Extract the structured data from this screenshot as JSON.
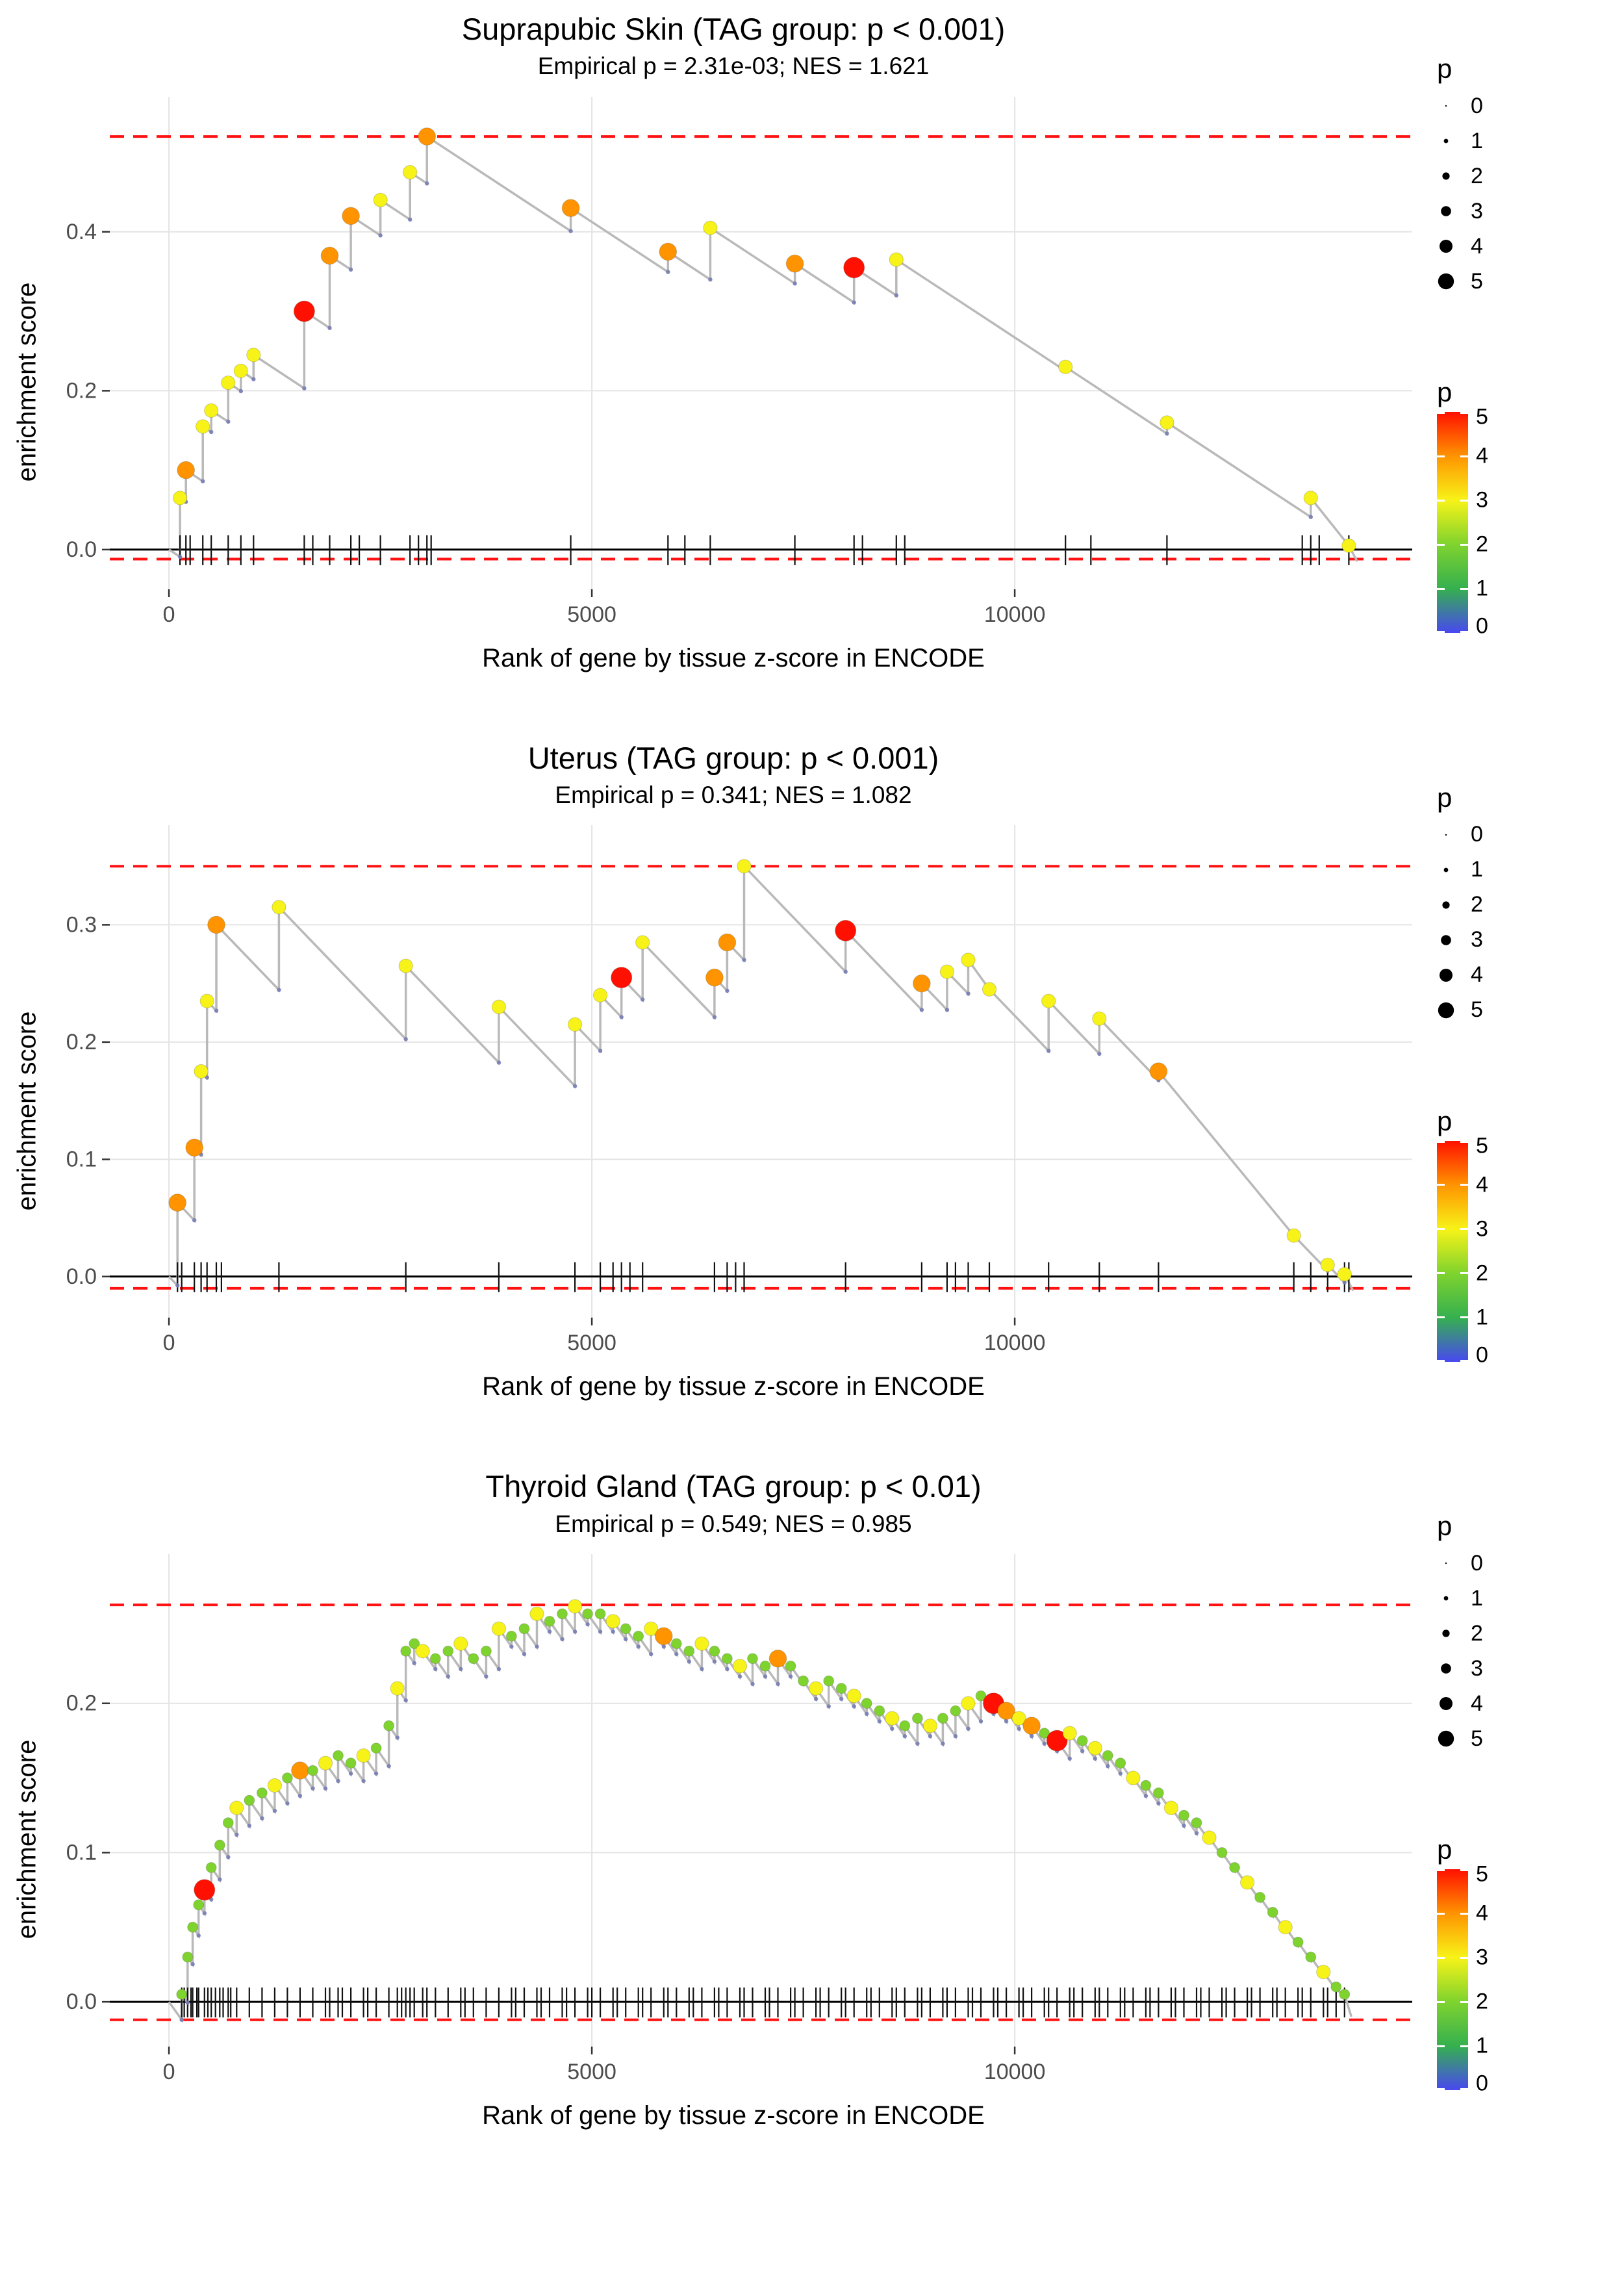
{
  "page": {
    "background": "#ffffff"
  },
  "legend": {
    "size_title": "p",
    "size_values": [
      0,
      1,
      2,
      3,
      4,
      5
    ],
    "size_labels": [
      "0",
      "1",
      "2",
      "3",
      "4",
      "5"
    ],
    "colorbar_title": "p",
    "colorbar_values": [
      5,
      4,
      3,
      2,
      1,
      0
    ],
    "colorbar_labels": [
      "5",
      "4",
      "3",
      "2",
      "1",
      "0"
    ],
    "color_stops": [
      {
        "t": 0.0,
        "c": "#4848f0"
      },
      {
        "t": 0.2,
        "c": "#35b04f"
      },
      {
        "t": 0.4,
        "c": "#7fd32e"
      },
      {
        "t": 0.6,
        "c": "#f7f318"
      },
      {
        "t": 0.8,
        "c": "#ff9400"
      },
      {
        "t": 1.0,
        "c": "#ff1000"
      }
    ]
  },
  "style": {
    "grid_color": "#e4e4e4",
    "line_color": "#b9b9b9",
    "dashed_color": "#ff1212",
    "zero_line_color": "#000000",
    "rug_color": "#111111",
    "tick_label_color": "#4d4d4d",
    "dip_dot_color": "#777db4"
  },
  "chart_data": [
    {
      "type": "line",
      "title": "Suprapubic Skin (TAG group: p < 0.001)",
      "subtitle": "Empirical p = 2.31e-03; NES = 1.621",
      "xlabel": "Rank of gene by tissue z-score in ENCODE",
      "ylabel": "enrichment score",
      "x_ticks": [
        0,
        5000,
        10000
      ],
      "y_ticks": [
        0.0,
        0.2,
        0.4
      ],
      "xlim": [
        -700,
        14700
      ],
      "ylim": [
        -0.05,
        0.57
      ],
      "hline_top": 0.52,
      "hline_bottom": -0.012,
      "zero_line": 0.0,
      "decline_slope": 7e-05,
      "x_end": 14050,
      "end_y": -0.015,
      "points_format": "[rank, enrichment_score, p]",
      "points": [
        [
          130,
          0.065,
          3
        ],
        [
          200,
          0.1,
          4
        ],
        [
          400,
          0.155,
          3
        ],
        [
          500,
          0.175,
          3
        ],
        [
          700,
          0.21,
          3
        ],
        [
          850,
          0.225,
          3
        ],
        [
          1000,
          0.245,
          3
        ],
        [
          1600,
          0.3,
          5
        ],
        [
          1900,
          0.37,
          4
        ],
        [
          2150,
          0.42,
          4
        ],
        [
          2500,
          0.44,
          3
        ],
        [
          2850,
          0.475,
          3
        ],
        [
          3050,
          0.52,
          4
        ],
        [
          4750,
          0.43,
          4
        ],
        [
          5900,
          0.375,
          4
        ],
        [
          6400,
          0.405,
          3
        ],
        [
          7400,
          0.36,
          4
        ],
        [
          8100,
          0.355,
          5
        ],
        [
          8600,
          0.365,
          3
        ],
        [
          10600,
          0.23,
          3
        ],
        [
          11800,
          0.16,
          3
        ],
        [
          13500,
          0.065,
          3
        ],
        [
          13950,
          0.005,
          3
        ]
      ],
      "rug_extra": [
        250,
        1700,
        2250,
        2950,
        3100,
        6100,
        8200,
        8700,
        10900,
        13400,
        13600
      ]
    },
    {
      "type": "line",
      "title": "Uterus (TAG group: p < 0.001)",
      "subtitle": "Empirical p = 0.341; NES = 1.082",
      "xlabel": "Rank of gene by tissue z-score in ENCODE",
      "ylabel": "enrichment score",
      "x_ticks": [
        0,
        5000,
        10000
      ],
      "y_ticks": [
        0.0,
        0.1,
        0.2,
        0.3
      ],
      "xlim": [
        -700,
        14700
      ],
      "ylim": [
        -0.035,
        0.385
      ],
      "hline_top": 0.35,
      "hline_bottom": -0.01,
      "zero_line": 0.0,
      "decline_slope": 7.5e-05,
      "x_end": 14000,
      "end_y": -0.012,
      "points_format": "[rank, enrichment_score, p]",
      "points": [
        [
          100,
          0.063,
          4
        ],
        [
          300,
          0.11,
          4
        ],
        [
          380,
          0.175,
          3
        ],
        [
          450,
          0.235,
          3
        ],
        [
          560,
          0.3,
          4
        ],
        [
          1300,
          0.315,
          3
        ],
        [
          2800,
          0.265,
          3
        ],
        [
          3900,
          0.23,
          3
        ],
        [
          4800,
          0.215,
          3
        ],
        [
          5100,
          0.24,
          3
        ],
        [
          5350,
          0.255,
          5
        ],
        [
          5600,
          0.285,
          3
        ],
        [
          6450,
          0.255,
          4
        ],
        [
          6600,
          0.285,
          4
        ],
        [
          6800,
          0.35,
          3
        ],
        [
          8000,
          0.295,
          5
        ],
        [
          8900,
          0.25,
          4
        ],
        [
          9200,
          0.26,
          3
        ],
        [
          9450,
          0.27,
          3
        ],
        [
          9700,
          0.245,
          3
        ],
        [
          10400,
          0.235,
          3
        ],
        [
          11000,
          0.22,
          3
        ],
        [
          11700,
          0.175,
          4
        ],
        [
          13300,
          0.035,
          3
        ],
        [
          13700,
          0.01,
          3
        ],
        [
          13900,
          0.002,
          3
        ]
      ],
      "rug_extra": [
        150,
        620,
        5250,
        5450,
        6700,
        9300,
        13500,
        13950
      ]
    },
    {
      "type": "line",
      "title": "Thyroid Gland (TAG group: p < 0.01)",
      "subtitle": "Empirical p = 0.549; NES = 0.985",
      "xlabel": "Rank of gene by tissue z-score in ENCODE",
      "ylabel": "enrichment score",
      "x_ticks": [
        0,
        5000,
        10000
      ],
      "y_ticks": [
        0.0,
        0.1,
        0.2
      ],
      "xlim": [
        -700,
        14700
      ],
      "ylim": [
        -0.03,
        0.3
      ],
      "hline_top": 0.266,
      "hline_bottom": -0.012,
      "zero_line": 0.0,
      "decline_slope": 8e-05,
      "x_end": 13980,
      "end_y": -0.01,
      "points_format": "[rank, enrichment_score, p]",
      "points": [
        [
          150,
          0.005,
          2
        ],
        [
          220,
          0.03,
          2
        ],
        [
          280,
          0.05,
          2
        ],
        [
          350,
          0.065,
          2
        ],
        [
          420,
          0.075,
          5
        ],
        [
          500,
          0.09,
          2
        ],
        [
          600,
          0.105,
          2
        ],
        [
          700,
          0.12,
          2
        ],
        [
          800,
          0.13,
          3
        ],
        [
          950,
          0.135,
          2
        ],
        [
          1100,
          0.14,
          2
        ],
        [
          1250,
          0.145,
          3
        ],
        [
          1400,
          0.15,
          2
        ],
        [
          1550,
          0.155,
          4
        ],
        [
          1700,
          0.155,
          2
        ],
        [
          1850,
          0.16,
          3
        ],
        [
          2000,
          0.165,
          2
        ],
        [
          2150,
          0.16,
          2
        ],
        [
          2300,
          0.165,
          3
        ],
        [
          2450,
          0.17,
          2
        ],
        [
          2600,
          0.185,
          2
        ],
        [
          2700,
          0.21,
          3
        ],
        [
          2800,
          0.235,
          2
        ],
        [
          2900,
          0.24,
          2
        ],
        [
          3000,
          0.235,
          3
        ],
        [
          3150,
          0.23,
          2
        ],
        [
          3300,
          0.235,
          2
        ],
        [
          3450,
          0.24,
          3
        ],
        [
          3600,
          0.23,
          2
        ],
        [
          3750,
          0.235,
          2
        ],
        [
          3900,
          0.25,
          3
        ],
        [
          4050,
          0.245,
          2
        ],
        [
          4200,
          0.25,
          2
        ],
        [
          4350,
          0.26,
          3
        ],
        [
          4500,
          0.255,
          2
        ],
        [
          4650,
          0.26,
          2
        ],
        [
          4800,
          0.265,
          3
        ],
        [
          4950,
          0.26,
          2
        ],
        [
          5100,
          0.26,
          2
        ],
        [
          5250,
          0.255,
          3
        ],
        [
          5400,
          0.25,
          2
        ],
        [
          5550,
          0.245,
          2
        ],
        [
          5700,
          0.25,
          3
        ],
        [
          5850,
          0.245,
          4
        ],
        [
          6000,
          0.24,
          2
        ],
        [
          6150,
          0.235,
          2
        ],
        [
          6300,
          0.24,
          3
        ],
        [
          6450,
          0.235,
          2
        ],
        [
          6600,
          0.23,
          2
        ],
        [
          6750,
          0.225,
          3
        ],
        [
          6900,
          0.23,
          2
        ],
        [
          7050,
          0.225,
          2
        ],
        [
          7200,
          0.23,
          4
        ],
        [
          7350,
          0.225,
          2
        ],
        [
          7500,
          0.215,
          2
        ],
        [
          7650,
          0.21,
          3
        ],
        [
          7800,
          0.215,
          2
        ],
        [
          7950,
          0.21,
          2
        ],
        [
          8100,
          0.205,
          3
        ],
        [
          8250,
          0.2,
          2
        ],
        [
          8400,
          0.195,
          2
        ],
        [
          8550,
          0.19,
          3
        ],
        [
          8700,
          0.185,
          2
        ],
        [
          8850,
          0.19,
          2
        ],
        [
          9000,
          0.185,
          3
        ],
        [
          9150,
          0.19,
          2
        ],
        [
          9300,
          0.195,
          2
        ],
        [
          9450,
          0.2,
          3
        ],
        [
          9600,
          0.205,
          2
        ],
        [
          9750,
          0.2,
          5
        ],
        [
          9900,
          0.195,
          4
        ],
        [
          10050,
          0.19,
          3
        ],
        [
          10200,
          0.185,
          4
        ],
        [
          10350,
          0.18,
          2
        ],
        [
          10500,
          0.175,
          5
        ],
        [
          10650,
          0.18,
          3
        ],
        [
          10800,
          0.175,
          2
        ],
        [
          10950,
          0.17,
          3
        ],
        [
          11100,
          0.165,
          2
        ],
        [
          11250,
          0.16,
          2
        ],
        [
          11400,
          0.15,
          3
        ],
        [
          11550,
          0.145,
          2
        ],
        [
          11700,
          0.14,
          2
        ],
        [
          11850,
          0.13,
          3
        ],
        [
          12000,
          0.125,
          2
        ],
        [
          12150,
          0.12,
          2
        ],
        [
          12300,
          0.11,
          3
        ],
        [
          12450,
          0.1,
          2
        ],
        [
          12600,
          0.09,
          2
        ],
        [
          12750,
          0.08,
          3
        ],
        [
          12900,
          0.07,
          2
        ],
        [
          13050,
          0.06,
          2
        ],
        [
          13200,
          0.05,
          3
        ],
        [
          13350,
          0.04,
          2
        ],
        [
          13500,
          0.03,
          2
        ],
        [
          13650,
          0.02,
          3
        ],
        [
          13800,
          0.01,
          2
        ],
        [
          13900,
          0.005,
          2
        ]
      ],
      "rug_extra": [
        180,
        260,
        330,
        460,
        550,
        640,
        730,
        1900,
        2050,
        2350,
        2750,
        2850,
        3050,
        3500,
        4100,
        4400,
        4700,
        5000,
        5300,
        5600,
        5900,
        6200,
        6500,
        6800,
        7100,
        7400,
        7700,
        8000,
        8300,
        8600,
        8900,
        9200,
        9500,
        9800,
        10100,
        10400,
        10700,
        11000,
        11300,
        11600,
        11900,
        12200,
        12500,
        12800,
        13100,
        13400,
        13700
      ]
    }
  ]
}
